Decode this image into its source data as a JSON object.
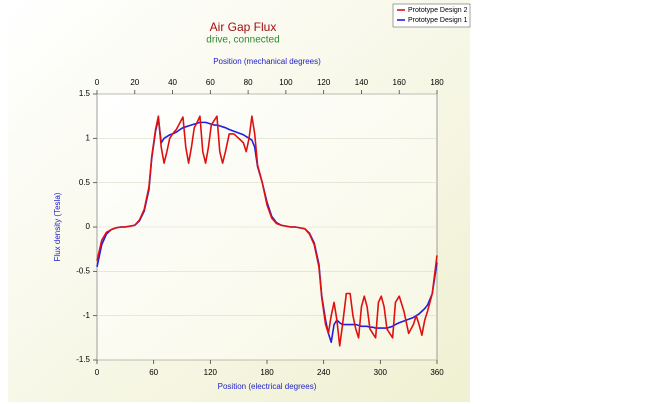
{
  "chart_data": {
    "type": "line",
    "title": "Air Gap Flux",
    "subtitle": "drive,  connected",
    "xlabel": "Position (electrical degrees)",
    "x2label": "Position (mechanical degrees)",
    "ylabel": "Flux density (Tesla)",
    "xlim": [
      0,
      360
    ],
    "xticks": [
      0,
      60,
      120,
      180,
      240,
      300,
      360
    ],
    "x2lim": [
      0,
      180
    ],
    "x2ticks": [
      0,
      20,
      40,
      60,
      80,
      100,
      120,
      140,
      160,
      180
    ],
    "ylim": [
      -1.5,
      1.5
    ],
    "yticks": [
      1.5,
      1,
      0.5,
      0,
      -0.5,
      -1,
      -1.5
    ],
    "grid": true,
    "legend": "top-right",
    "x": [
      0,
      5,
      10,
      15,
      20,
      25,
      30,
      35,
      40,
      45,
      50,
      55,
      58,
      62,
      65,
      68,
      71,
      74,
      77,
      80,
      84,
      88,
      91,
      94,
      97,
      100,
      103,
      106,
      109,
      112,
      115,
      118,
      121,
      124,
      127,
      130,
      133,
      136,
      140,
      145,
      150,
      155,
      158,
      161,
      164,
      167,
      170,
      175,
      180,
      185,
      190,
      195,
      200,
      205,
      210,
      215,
      220,
      225,
      230,
      235,
      238,
      242,
      245,
      248,
      251,
      254,
      257,
      260,
      264,
      268,
      271,
      274,
      277,
      280,
      283,
      286,
      289,
      292,
      295,
      298,
      301,
      304,
      307,
      310,
      313,
      316,
      320,
      325,
      330,
      335,
      338,
      341,
      344,
      347,
      350,
      355,
      360
    ],
    "series": [
      {
        "name": "Prototype Design 2",
        "color": "#e01010",
        "values": [
          -0.38,
          -0.15,
          -0.06,
          -0.03,
          -0.01,
          0,
          0,
          0.01,
          0.02,
          0.08,
          0.2,
          0.45,
          0.8,
          1.1,
          1.25,
          0.9,
          0.72,
          0.85,
          1.0,
          1.05,
          1.1,
          1.18,
          1.24,
          0.9,
          0.72,
          0.9,
          1.12,
          1.18,
          1.25,
          0.85,
          0.72,
          0.9,
          1.15,
          1.2,
          1.25,
          0.85,
          0.72,
          0.85,
          1.05,
          1.05,
          1.0,
          0.95,
          0.85,
          1.0,
          1.25,
          1.05,
          0.7,
          0.5,
          0.25,
          0.1,
          0.04,
          0.02,
          0.01,
          0,
          0,
          -0.01,
          -0.02,
          -0.08,
          -0.2,
          -0.45,
          -0.8,
          -1.1,
          -1.2,
          -1.0,
          -0.85,
          -1.05,
          -1.34,
          -1.1,
          -0.75,
          -0.75,
          -1.0,
          -1.15,
          -1.25,
          -0.9,
          -0.78,
          -0.9,
          -1.15,
          -1.2,
          -1.25,
          -0.85,
          -0.78,
          -0.9,
          -1.15,
          -1.2,
          -1.25,
          -0.85,
          -0.78,
          -0.95,
          -1.2,
          -1.1,
          -1.0,
          -1.1,
          -1.22,
          -1.05,
          -0.95,
          -0.75,
          -0.32
        ]
      },
      {
        "name": "Prototype Design 1",
        "color": "#2020e0",
        "values": [
          -0.45,
          -0.2,
          -0.08,
          -0.03,
          -0.01,
          0,
          0,
          0.01,
          0.02,
          0.07,
          0.18,
          0.42,
          0.78,
          1.08,
          1.22,
          0.95,
          1.0,
          1.02,
          1.04,
          1.05,
          1.07,
          1.1,
          1.12,
          1.13,
          1.14,
          1.15,
          1.16,
          1.17,
          1.18,
          1.18,
          1.18,
          1.17,
          1.16,
          1.15,
          1.15,
          1.14,
          1.13,
          1.12,
          1.1,
          1.08,
          1.06,
          1.04,
          1.02,
          1.0,
          0.98,
          0.9,
          0.68,
          0.5,
          0.28,
          0.12,
          0.05,
          0.02,
          0.01,
          0,
          0,
          -0.01,
          -0.02,
          -0.07,
          -0.18,
          -0.42,
          -0.78,
          -1.05,
          -1.2,
          -1.3,
          -1.1,
          -1.05,
          -1.08,
          -1.1,
          -1.1,
          -1.1,
          -1.1,
          -1.1,
          -1.11,
          -1.12,
          -1.12,
          -1.12,
          -1.13,
          -1.13,
          -1.14,
          -1.14,
          -1.14,
          -1.14,
          -1.14,
          -1.13,
          -1.12,
          -1.1,
          -1.08,
          -1.06,
          -1.04,
          -1.02,
          -1.0,
          -0.98,
          -0.95,
          -0.92,
          -0.88,
          -0.75,
          -0.4
        ]
      }
    ]
  }
}
